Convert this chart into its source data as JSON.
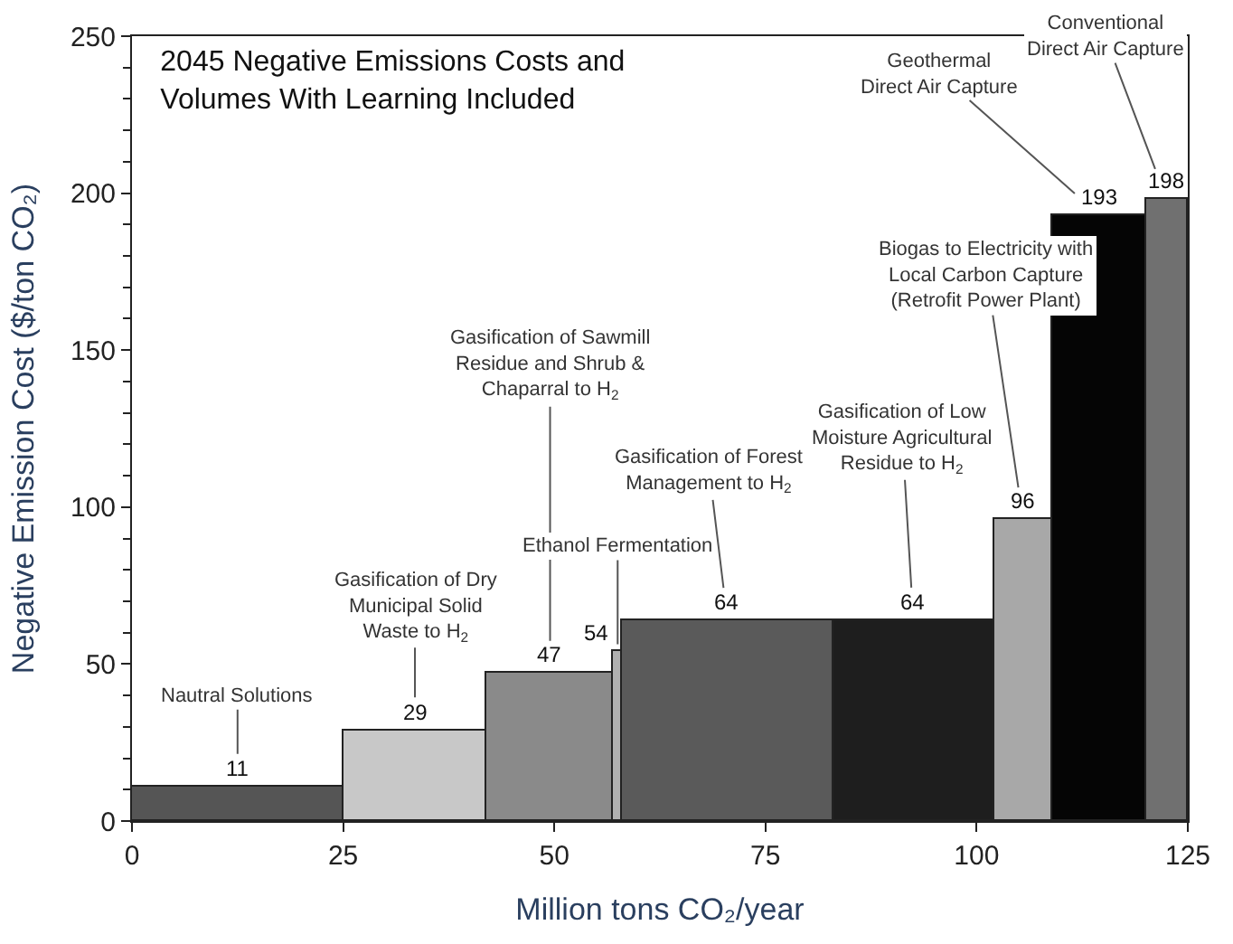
{
  "chart_data": {
    "type": "histogram",
    "title": "2045 Negative Emissions Costs and\nVolumes With Learning Included",
    "xlabel": "Million tons CO₂/year",
    "ylabel": "Negative Emission Cost ($/ton CO₂)",
    "bins": [
      0,
      25,
      42,
      57,
      58,
      83,
      102,
      109,
      120,
      125
    ],
    "values": [
      11,
      29,
      47,
      54,
      64,
      64,
      96,
      193,
      198
    ],
    "colors": [
      "#555555",
      "#c8c8c8",
      "#8a8a8a",
      "#b0b0b0",
      "#5a5a5a",
      "#1e1e1e",
      "#a8a8a8",
      "#050505",
      "#707070"
    ],
    "data_labels": true,
    "xlim": [
      0,
      125
    ],
    "xticks": [
      0,
      25,
      50,
      75,
      100,
      125
    ],
    "ylim": [
      0,
      250
    ],
    "yticks": [
      0,
      50,
      100,
      150,
      200,
      250
    ],
    "legend": false,
    "annotations": [
      {
        "text": "Nautral Solutions",
        "x": 12.5,
        "y": 11
      },
      {
        "text": "Gasification of Dry\nMunicipal Solid\nWaste to H$_{2}$",
        "x": 33.5,
        "y": 29
      },
      {
        "text": "Gasification of Sawmill\nResidue and Shrub &\nChaparral to H$_{2}$",
        "x": 49.5,
        "y": 47
      },
      {
        "text": "Ethanol Fermentation",
        "x": 57.5,
        "y": 54
      },
      {
        "text": "Gasification of Forest\nManagement to H$_{2}$",
        "x": 70.5,
        "y": 64
      },
      {
        "text": "Gasification of Low\nMoisture Agricultural\nResidue to H$_{2}$",
        "x": 92.5,
        "y": 64
      },
      {
        "text": "Biogas to Electricity with\nLocal Carbon Capture\n(Retrofit Power Plant)",
        "x": 105.5,
        "y": 96
      },
      {
        "text": "Geothermal\nDirect Air Capture",
        "x": 114.5,
        "y": 193
      },
      {
        "text": "Conventional\nDirect Air Capture",
        "x": 122.5,
        "y": 198
      }
    ]
  }
}
